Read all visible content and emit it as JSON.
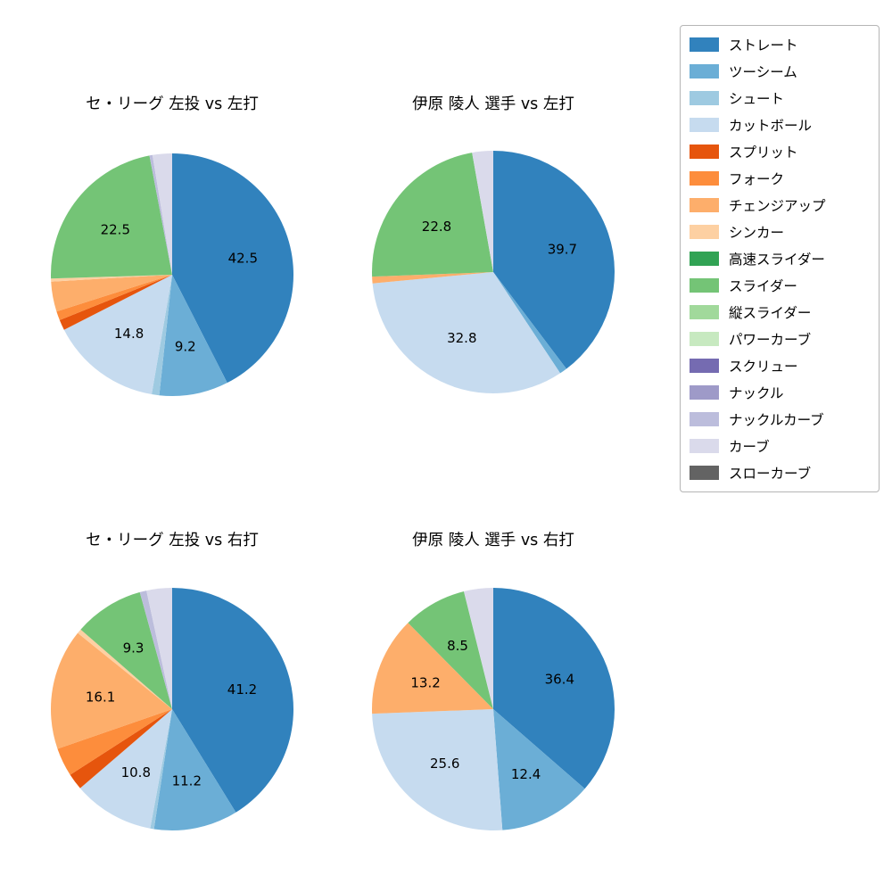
{
  "figure": {
    "background": "#ffffff",
    "text_color": "#000000"
  },
  "legend": {
    "position": "top-right",
    "border_color": "#b5b5b5",
    "entries": [
      {
        "label": "ストレート",
        "color": "#3182bd"
      },
      {
        "label": "ツーシーム",
        "color": "#6baed6"
      },
      {
        "label": "シュート",
        "color": "#9ecae1"
      },
      {
        "label": "カットボール",
        "color": "#c6dbef"
      },
      {
        "label": "スプリット",
        "color": "#e6550d"
      },
      {
        "label": "フォーク",
        "color": "#fd8d3c"
      },
      {
        "label": "チェンジアップ",
        "color": "#fdae6b"
      },
      {
        "label": "シンカー",
        "color": "#fdd0a2"
      },
      {
        "label": "高速スライダー",
        "color": "#31a354"
      },
      {
        "label": "スライダー",
        "color": "#74c476"
      },
      {
        "label": "縦スライダー",
        "color": "#a1d99b"
      },
      {
        "label": "パワーカーブ",
        "color": "#c7e9c0"
      },
      {
        "label": "スクリュー",
        "color": "#756bb1"
      },
      {
        "label": "ナックル",
        "color": "#9e9ac8"
      },
      {
        "label": "ナックルカーブ",
        "color": "#bcbddc"
      },
      {
        "label": "カーブ",
        "color": "#dadaeb"
      },
      {
        "label": "スローカーブ",
        "color": "#636363"
      }
    ]
  },
  "chart_data": [
    {
      "type": "pie",
      "title": "セ・リーグ 左投 vs 左打",
      "start_angle_deg": 90,
      "direction": "clockwise",
      "label_min_value": 8,
      "labels": [
        "ストレート",
        "ツーシーム",
        "シュート",
        "カットボール",
        "スプリット",
        "フォーク",
        "チェンジアップ",
        "シンカー",
        "スライダー",
        "ナックルカーブ",
        "カーブ"
      ],
      "values": [
        42.5,
        9.2,
        1.0,
        14.8,
        1.4,
        1.2,
        4.0,
        0.4,
        22.5,
        0.4,
        2.6
      ]
    },
    {
      "type": "pie",
      "title": "伊原 陵人 選手 vs 左打",
      "start_angle_deg": 90,
      "direction": "clockwise",
      "label_min_value": 8,
      "labels": [
        "ストレート",
        "ツーシーム",
        "カットボール",
        "チェンジアップ",
        "スライダー",
        "カーブ"
      ],
      "values": [
        39.7,
        1.0,
        32.8,
        0.9,
        22.8,
        2.8
      ]
    },
    {
      "type": "pie",
      "title": "セ・リーグ 左投 vs 右打",
      "start_angle_deg": 90,
      "direction": "clockwise",
      "label_min_value": 8,
      "labels": [
        "ストレート",
        "ツーシーム",
        "シュート",
        "カットボール",
        "スプリット",
        "フォーク",
        "チェンジアップ",
        "シンカー",
        "スライダー",
        "ナックルカーブ",
        "カーブ"
      ],
      "values": [
        41.2,
        11.2,
        0.5,
        10.8,
        2.2,
        3.8,
        16.1,
        0.6,
        9.3,
        0.9,
        3.4
      ]
    },
    {
      "type": "pie",
      "title": "伊原 陵人 選手 vs 右打",
      "start_angle_deg": 90,
      "direction": "clockwise",
      "label_min_value": 8,
      "labels": [
        "ストレート",
        "ツーシーム",
        "カットボール",
        "チェンジアップ",
        "スライダー",
        "カーブ"
      ],
      "values": [
        36.4,
        12.4,
        25.6,
        13.2,
        8.5,
        3.9
      ]
    }
  ]
}
